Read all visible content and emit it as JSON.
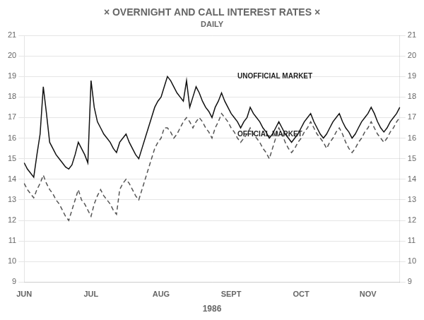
{
  "chart_data": {
    "type": "line",
    "title": "× OVERNIGHT AND CALL INTEREST RATES ×",
    "subtitle": "DAILY",
    "x_label": "1986",
    "categories": [
      "JUN",
      null,
      null,
      null,
      null,
      null,
      null,
      null,
      null,
      null,
      null,
      null,
      null,
      null,
      null,
      null,
      null,
      null,
      null,
      null,
      null,
      "JUL",
      null,
      null,
      null,
      null,
      null,
      null,
      null,
      null,
      null,
      null,
      null,
      null,
      null,
      null,
      null,
      null,
      null,
      null,
      null,
      null,
      null,
      "AUG",
      null,
      null,
      null,
      null,
      null,
      null,
      null,
      null,
      null,
      null,
      null,
      null,
      null,
      null,
      null,
      null,
      null,
      null,
      null,
      null,
      null,
      "SEPT",
      null,
      null,
      null,
      null,
      null,
      null,
      null,
      null,
      null,
      null,
      null,
      null,
      null,
      null,
      null,
      null,
      null,
      null,
      null,
      null,
      null,
      "OCT",
      null,
      null,
      null,
      null,
      null,
      null,
      null,
      null,
      null,
      null,
      null,
      null,
      null,
      null,
      null,
      null,
      null,
      null,
      null,
      null,
      "NOV",
      null,
      null,
      null,
      null,
      null,
      null,
      null,
      null,
      null,
      null
    ],
    "series": [
      {
        "name": "UNOFFICIAL MARKET",
        "color": "#111111",
        "line_style": "solid",
        "values": [
          14.8,
          14.5,
          14.3,
          14.1,
          15.2,
          16.2,
          18.5,
          17.2,
          15.8,
          15.5,
          15.2,
          15.0,
          14.8,
          14.6,
          14.5,
          14.7,
          15.2,
          15.8,
          15.5,
          15.2,
          14.8,
          18.8,
          17.5,
          16.8,
          16.5,
          16.2,
          16.0,
          15.8,
          15.5,
          15.3,
          15.8,
          16.0,
          16.2,
          15.8,
          15.5,
          15.2,
          15.0,
          15.5,
          16.0,
          16.5,
          17.0,
          17.5,
          17.8,
          18.0,
          18.5,
          19.0,
          18.8,
          18.5,
          18.2,
          18.0,
          17.8,
          18.8,
          17.5,
          18.0,
          18.5,
          18.2,
          17.8,
          17.5,
          17.3,
          17.0,
          17.5,
          17.8,
          18.2,
          17.8,
          17.5,
          17.2,
          17.0,
          16.8,
          16.5,
          16.8,
          17.0,
          17.5,
          17.2,
          17.0,
          16.8,
          16.5,
          16.3,
          16.0,
          16.2,
          16.5,
          16.8,
          16.5,
          16.2,
          16.0,
          15.8,
          16.0,
          16.2,
          16.5,
          16.8,
          17.0,
          17.2,
          16.8,
          16.5,
          16.2,
          16.0,
          16.2,
          16.5,
          16.8,
          17.0,
          17.2,
          16.8,
          16.5,
          16.3,
          16.0,
          16.2,
          16.5,
          16.8,
          17.0,
          17.2,
          17.5,
          17.2,
          16.8,
          16.5,
          16.3,
          16.5,
          16.8,
          17.0,
          17.2,
          17.5
        ]
      },
      {
        "name": "OFFICIAL MARKET",
        "color": "#555555",
        "line_style": "dashed",
        "values": [
          13.8,
          13.5,
          13.3,
          13.1,
          13.5,
          13.8,
          14.2,
          13.8,
          13.5,
          13.3,
          13.0,
          12.8,
          12.5,
          12.2,
          12.0,
          12.5,
          13.0,
          13.5,
          13.0,
          12.8,
          12.5,
          12.2,
          12.8,
          13.2,
          13.5,
          13.2,
          13.0,
          12.8,
          12.5,
          12.3,
          13.5,
          13.8,
          14.0,
          13.8,
          13.5,
          13.2,
          13.0,
          13.5,
          14.0,
          14.5,
          15.0,
          15.5,
          15.8,
          16.0,
          16.5,
          16.5,
          16.3,
          16.0,
          16.2,
          16.5,
          16.8,
          17.0,
          16.8,
          16.5,
          16.8,
          17.0,
          16.8,
          16.5,
          16.3,
          16.0,
          16.5,
          16.8,
          17.2,
          17.0,
          16.8,
          16.5,
          16.3,
          16.0,
          15.8,
          16.0,
          16.2,
          16.5,
          16.2,
          16.0,
          15.8,
          15.5,
          15.3,
          15.0,
          15.5,
          16.0,
          16.5,
          16.2,
          15.8,
          15.5,
          15.3,
          15.5,
          15.8,
          16.0,
          16.3,
          16.5,
          16.8,
          16.5,
          16.2,
          16.0,
          15.8,
          15.5,
          15.8,
          16.0,
          16.3,
          16.5,
          16.2,
          15.8,
          15.5,
          15.3,
          15.5,
          15.8,
          16.0,
          16.3,
          16.5,
          16.8,
          16.5,
          16.2,
          16.0,
          15.8,
          16.0,
          16.3,
          16.5,
          16.8,
          17.0
        ]
      }
    ],
    "ylim": [
      9,
      21
    ],
    "yticks": [
      9,
      10,
      11,
      12,
      13,
      14,
      15,
      16,
      17,
      18,
      19,
      20,
      21
    ],
    "y2lim": [
      9,
      21
    ],
    "y2ticks": [
      9,
      10,
      11,
      12,
      13,
      14,
      15,
      16,
      17,
      18,
      19,
      20,
      21
    ],
    "grid": "y",
    "annotations": [
      {
        "text": "UNOFFICIAL MARKET",
        "x": 67,
        "y": 19.0
      },
      {
        "text": "OFFICIAL MARKET",
        "x": 67,
        "y": 16.2
      }
    ]
  }
}
